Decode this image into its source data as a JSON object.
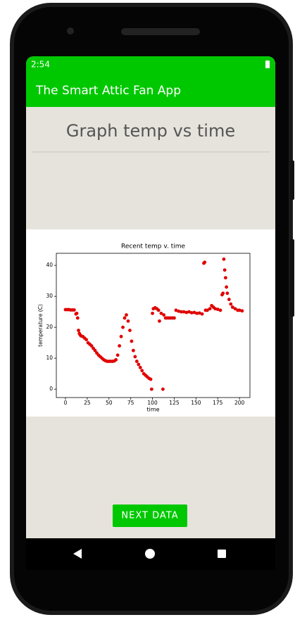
{
  "status_bar": {
    "time": "2:54"
  },
  "app_bar": {
    "title": "The Smart Attic Fan App"
  },
  "heading": "Graph temp vs time",
  "button": {
    "label": "NEXT DATA"
  },
  "chart_data": {
    "type": "scatter",
    "title": "Recent temp v. time",
    "x_label": "time",
    "y_label": "temperature (C)",
    "color": "#e00000",
    "x": [
      0,
      2,
      4,
      6,
      8,
      10,
      12,
      13,
      14,
      15,
      16,
      17,
      18,
      20,
      22,
      24,
      26,
      28,
      30,
      32,
      34,
      36,
      38,
      40,
      42,
      44,
      46,
      48,
      50,
      52,
      54,
      56,
      58,
      60,
      62,
      64,
      66,
      68,
      70,
      72,
      74,
      76,
      78,
      80,
      82,
      84,
      86,
      88,
      90,
      92,
      94,
      96,
      98,
      99,
      100,
      101,
      103,
      105,
      107,
      108,
      110,
      112,
      113,
      115,
      117,
      119,
      121,
      123,
      125,
      127,
      130,
      133,
      136,
      139,
      142,
      145,
      148,
      151,
      154,
      157,
      159,
      160,
      161,
      163,
      166,
      168,
      170,
      172,
      175,
      178,
      180,
      181,
      182,
      183,
      184,
      185,
      186,
      188,
      190,
      192,
      195,
      198,
      200,
      203
    ],
    "values": [
      25.7,
      25.7,
      25.7,
      25.6,
      25.6,
      25.6,
      24.3,
      24.5,
      23,
      19,
      18,
      17.5,
      17.2,
      17,
      16.5,
      16,
      15,
      14.5,
      14,
      13.2,
      12.5,
      11.7,
      11,
      10.5,
      10,
      9.5,
      9.2,
      9,
      9,
      9,
      9,
      9.1,
      9.5,
      11,
      14,
      17,
      20,
      23,
      24,
      22,
      19,
      15.5,
      12.5,
      10.5,
      9,
      8,
      7,
      6,
      5,
      4.5,
      4,
      3.5,
      3.2,
      0,
      24.5,
      26,
      26.3,
      26,
      25.5,
      22,
      24.5,
      0,
      24,
      23,
      23,
      23,
      23,
      23,
      23,
      25.5,
      25.2,
      25,
      25,
      24.8,
      25,
      24.7,
      24.8,
      24.5,
      24.6,
      24.3,
      40.7,
      41,
      25.5,
      25.5,
      26,
      27,
      26.5,
      26,
      25.8,
      25.5,
      30.5,
      31,
      42,
      38.5,
      36,
      33,
      31,
      29,
      27.5,
      26.5,
      26,
      25.5,
      25.5,
      25.3
    ],
    "xlim": [
      -10.5,
      212
    ],
    "ylim": [
      -2.7,
      43.9
    ],
    "xticks": [
      0,
      25,
      50,
      75,
      100,
      125,
      150,
      175,
      200
    ],
    "yticks": [
      0,
      10,
      20,
      30,
      40
    ]
  }
}
